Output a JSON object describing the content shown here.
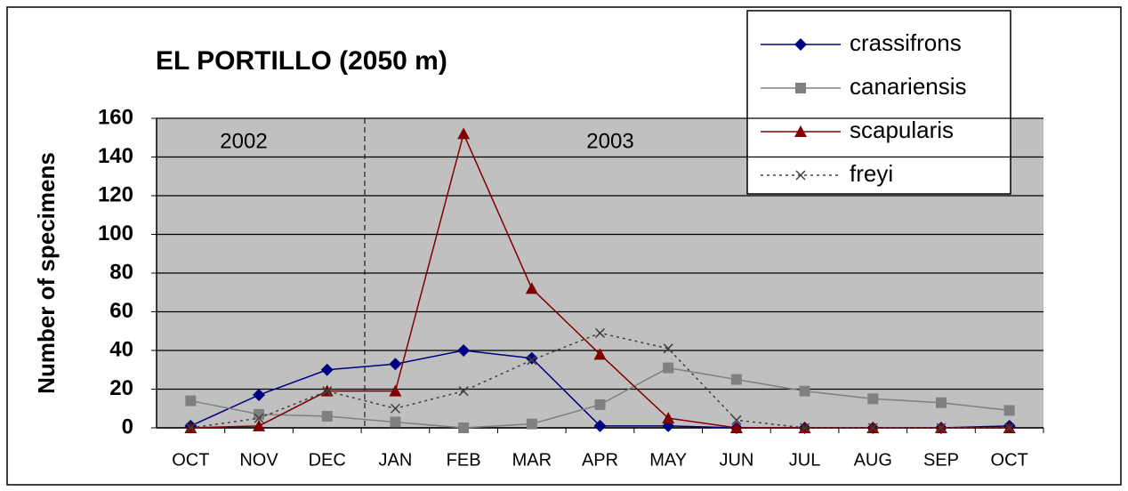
{
  "chart_data": {
    "type": "line",
    "title": "EL PORTILLO (2050 m)",
    "y_label": "Number of specimens",
    "annotations": [
      "2002",
      "2003"
    ],
    "categories": [
      "OCT",
      "NOV",
      "DEC",
      "JAN",
      "FEB",
      "MAR",
      "APR",
      "MAY",
      "JUN",
      "JUL",
      "AUG",
      "SEP",
      "OCT"
    ],
    "series": [
      {
        "name": "crassifrons",
        "color": "#000080",
        "marker": "diamond",
        "values": [
          1,
          17,
          30,
          33,
          40,
          36,
          1,
          1,
          0,
          0,
          0,
          0,
          1
        ]
      },
      {
        "name": "canariensis",
        "color": "#808080",
        "marker": "square",
        "values": [
          14,
          7,
          6,
          3,
          0,
          2,
          12,
          31,
          25,
          19,
          15,
          13,
          9
        ]
      },
      {
        "name": "scapularis",
        "color": "#800000",
        "marker": "triangle",
        "values": [
          0,
          1,
          19,
          19,
          152,
          72,
          38,
          5,
          0,
          0,
          0,
          0,
          0
        ]
      },
      {
        "name": "freyi",
        "color": "#404040",
        "marker": "x",
        "dashed": true,
        "values": [
          0,
          5,
          19,
          10,
          19,
          35,
          49,
          41,
          4,
          0,
          0,
          0,
          0
        ]
      }
    ],
    "ylim": [
      0,
      160
    ],
    "yticks": [
      0,
      20,
      40,
      60,
      80,
      100,
      120,
      140,
      160
    ],
    "grid": true,
    "legend": "top-right"
  }
}
